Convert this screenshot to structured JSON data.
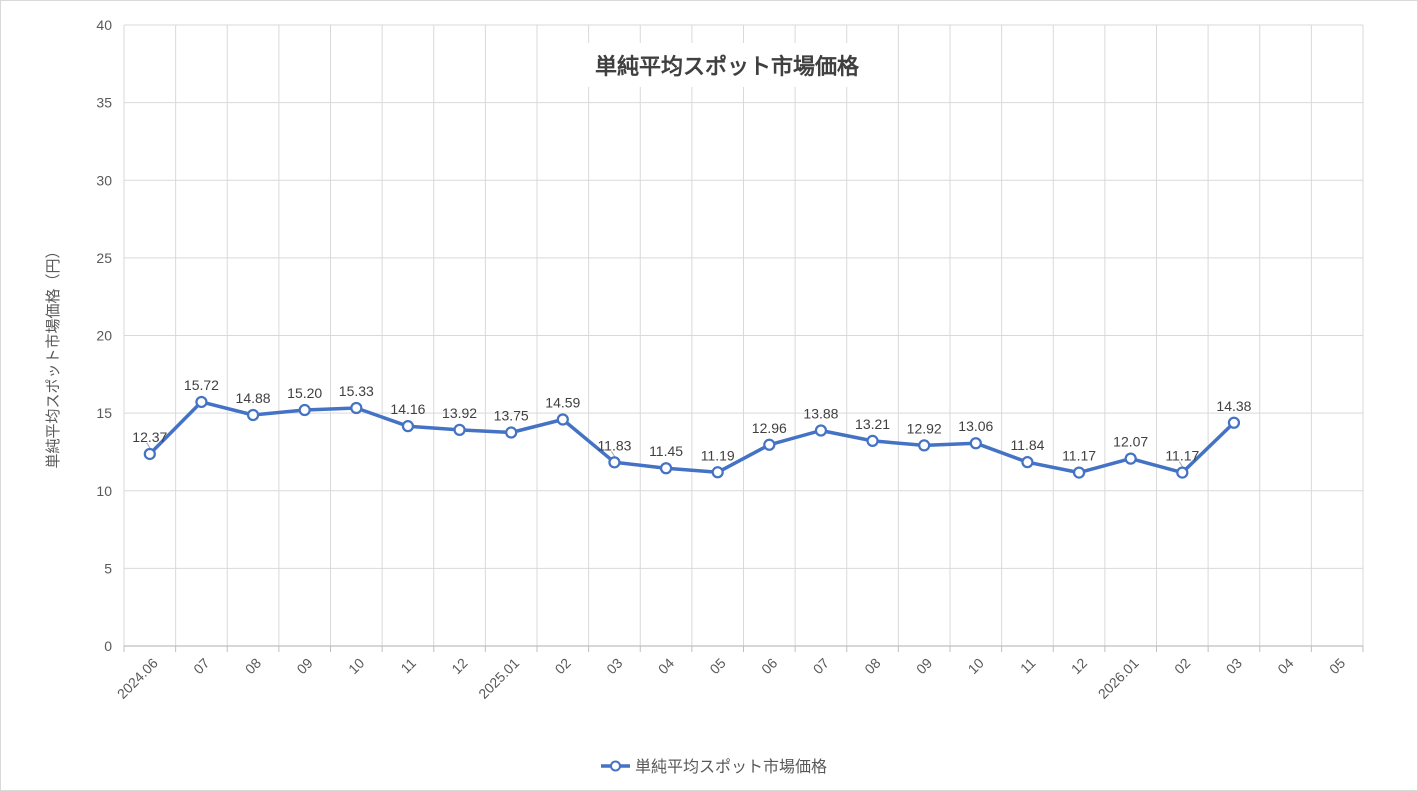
{
  "chart": {
    "title": "単純平均スポット市場価格",
    "y_axis_title": "単純平均スポット市場価格（円）",
    "legend_label": "単純平均スポット市場価格"
  },
  "colors": {
    "line": "#4472C4",
    "marker_fill": "#FFFFFF",
    "gridline": "#D9D9D9",
    "axis_line": "#BFBFBF",
    "tick_text": "#595959",
    "title_text": "#404040",
    "data_label_text": "#404040",
    "leader_line": "#A6A6A6"
  },
  "chart_data": {
    "type": "line",
    "title": "単純平均スポット市場価格",
    "xlabel": "",
    "ylabel": "単純平均スポット市場価格（円）",
    "categories": [
      "2024.06",
      "07",
      "08",
      "09",
      "10",
      "11",
      "12",
      "2025.01",
      "02",
      "03",
      "04",
      "05",
      "06",
      "07",
      "08",
      "09",
      "10",
      "11",
      "12",
      "2026.01",
      "02",
      "03",
      "04",
      "05"
    ],
    "series": [
      {
        "name": "単純平均スポット市場価格",
        "values": [
          12.37,
          15.72,
          14.88,
          15.2,
          15.33,
          14.16,
          13.92,
          13.75,
          14.59,
          11.83,
          11.45,
          11.19,
          12.96,
          13.88,
          13.21,
          12.92,
          13.06,
          11.84,
          11.17,
          12.07,
          11.17,
          14.38,
          null,
          null
        ]
      }
    ],
    "ylim": [
      0,
      40
    ],
    "y_ticks": [
      0,
      5,
      10,
      15,
      20,
      25,
      30,
      35,
      40
    ],
    "grid": true,
    "data_labels": true,
    "label_decimals": 2,
    "legend_position": "bottom",
    "leader_line_indices": [
      0,
      9,
      20
    ]
  }
}
